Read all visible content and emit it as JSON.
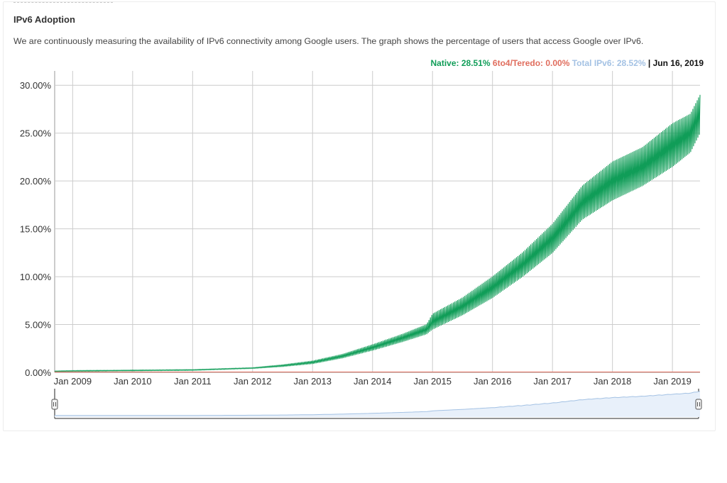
{
  "section": {
    "title": "IPv6 Adoption",
    "description": "We are continuously measuring the availability of IPv6 connectivity among Google users. The graph shows the percentage of users that access Google over IPv6."
  },
  "legend": {
    "native_label": "Native: 28.51%",
    "teredo_label": "6to4/Teredo: 0.00%",
    "total_label": "Total IPv6: 28.52%",
    "separator": "|",
    "date": "Jun 16, 2019"
  },
  "colors": {
    "native": "#109d58",
    "teredo": "#e06d5d",
    "total": "#a4c2e4",
    "grid": "#cccccc",
    "navigator_fill": "#e8f0fa",
    "navigator_line": "#a4c2e4"
  },
  "chart_data": {
    "type": "area",
    "title": "",
    "xlabel": "",
    "ylabel": "",
    "y_ticks": [
      "0.00%",
      "5.00%",
      "10.00%",
      "15.00%",
      "20.00%",
      "25.00%",
      "30.00%"
    ],
    "x_ticks": [
      "Jan 2009",
      "Jan 2010",
      "Jan 2011",
      "Jan 2012",
      "Jan 2013",
      "Jan 2014",
      "Jan 2015",
      "Jan 2016",
      "Jan 2017",
      "Jan 2018",
      "Jan 2019"
    ],
    "ylim": [
      0,
      31.5
    ],
    "xlim": [
      2008.7,
      2019.46
    ],
    "grid": true,
    "legend_position": "top-right",
    "series": [
      {
        "name": "Native",
        "x": [
          2008.7,
          2009.0,
          2010.0,
          2011.0,
          2011.5,
          2012.0,
          2012.5,
          2013.0,
          2013.5,
          2014.0,
          2014.5,
          2014.9,
          2015.0,
          2015.5,
          2016.0,
          2016.5,
          2017.0,
          2017.5,
          2018.0,
          2018.5,
          2019.0,
          2019.3,
          2019.46
        ],
        "lower": [
          0.1,
          0.1,
          0.15,
          0.2,
          0.3,
          0.4,
          0.6,
          0.9,
          1.5,
          2.3,
          3.2,
          4.0,
          4.5,
          6.0,
          7.8,
          10.0,
          12.5,
          16.0,
          18.0,
          19.5,
          21.5,
          23.0,
          25.0
        ],
        "upper": [
          0.15,
          0.2,
          0.25,
          0.3,
          0.4,
          0.5,
          0.8,
          1.2,
          1.9,
          2.9,
          4.0,
          5.0,
          6.1,
          7.8,
          10.0,
          12.5,
          15.5,
          19.5,
          22.0,
          23.5,
          26.0,
          27.0,
          29.0
        ]
      },
      {
        "name": "6to4/Teredo",
        "x": [
          2008.7,
          2019.46
        ],
        "values": [
          0.0,
          0.0
        ]
      }
    ]
  }
}
